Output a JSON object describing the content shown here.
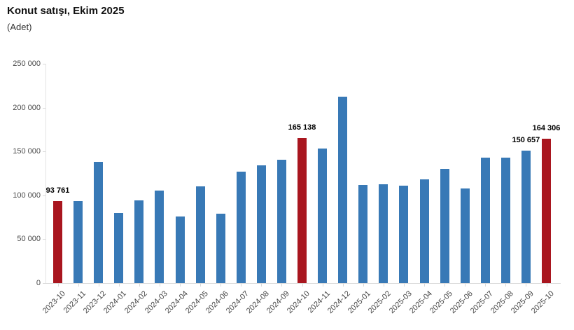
{
  "header": {
    "title": "Konut satışı, Ekim 2025",
    "unit_label": "(Adet)"
  },
  "colors": {
    "bar_default": "#3879b6",
    "bar_highlight": "#a9161f",
    "axis_line": "#dddddd",
    "tick_text": "#4a4a4a",
    "value_label_text": "#000000"
  },
  "chart_data": {
    "type": "bar",
    "title": "Konut satışı, Ekim 2025",
    "ylabel": "(Adet)",
    "ylim": [
      0,
      250000
    ],
    "grid": false,
    "legend": "none",
    "ytick_values": [
      0,
      50000,
      100000,
      150000,
      200000,
      250000
    ],
    "ytick_labels": [
      "0",
      "50 000",
      "100 000",
      "150 000",
      "200 000",
      "250 000"
    ],
    "categories": [
      "2023-10",
      "2023-11",
      "2023-12",
      "2024-01",
      "2024-02",
      "2024-03",
      "2024-04",
      "2024-05",
      "2024-06",
      "2024-07",
      "2024-08",
      "2024-09",
      "2024-10",
      "2024-11",
      "2024-12",
      "2025-01",
      "2025-02",
      "2025-03",
      "2025-04",
      "2025-05",
      "2025-06",
      "2025-07",
      "2025-08",
      "2025-09",
      "2025-10"
    ],
    "values": [
      93761,
      93514,
      138577,
      80308,
      93902,
      105476,
      75569,
      110588,
      79313,
      127088,
      134155,
      140919,
      165138,
      153014,
      212637,
      112173,
      112818,
      110795,
      118359,
      130025,
      107723,
      142858,
      143319,
      150657,
      164306
    ],
    "highlighted_categories": [
      "2023-10",
      "2024-10",
      "2025-10"
    ],
    "data_labels": [
      {
        "category": "2023-10",
        "text": "93 761"
      },
      {
        "category": "2024-10",
        "text": "165 138"
      },
      {
        "category": "2025-09",
        "text": "150 657"
      },
      {
        "category": "2025-10",
        "text": "164 306"
      }
    ]
  }
}
